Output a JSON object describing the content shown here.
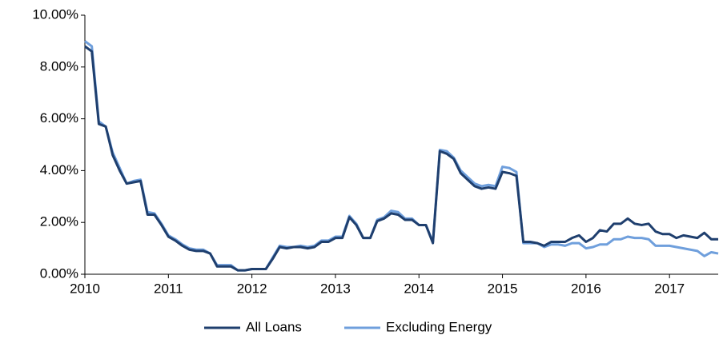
{
  "chart_data": {
    "type": "line",
    "x": [
      2010,
      2010.083,
      2010.167,
      2010.25,
      2010.333,
      2010.417,
      2010.5,
      2010.583,
      2010.667,
      2010.75,
      2010.833,
      2010.917,
      2011,
      2011.083,
      2011.167,
      2011.25,
      2011.333,
      2011.417,
      2011.5,
      2011.583,
      2011.667,
      2011.75,
      2011.833,
      2011.917,
      2012,
      2012.083,
      2012.167,
      2012.25,
      2012.333,
      2012.417,
      2012.5,
      2012.583,
      2012.667,
      2012.75,
      2012.833,
      2012.917,
      2013,
      2013.083,
      2013.167,
      2013.25,
      2013.333,
      2013.417,
      2013.5,
      2013.583,
      2013.667,
      2013.75,
      2013.833,
      2013.917,
      2014,
      2014.083,
      2014.167,
      2014.25,
      2014.333,
      2014.417,
      2014.5,
      2014.583,
      2014.667,
      2014.75,
      2014.833,
      2014.917,
      2015,
      2015.083,
      2015.167,
      2015.25,
      2015.333,
      2015.417,
      2015.5,
      2015.583,
      2015.667,
      2015.75,
      2015.833,
      2015.917,
      2016,
      2016.083,
      2016.167,
      2016.25,
      2016.333,
      2016.417,
      2016.5,
      2016.583,
      2016.667,
      2016.75,
      2016.833,
      2016.917,
      2017,
      2017.083,
      2017.167,
      2017.25,
      2017.333,
      2017.417,
      2017.5,
      2017.583
    ],
    "series": [
      {
        "name": "All Loans",
        "color": "#1f3f6e",
        "values": [
          8.8,
          8.6,
          5.8,
          5.7,
          4.6,
          4.0,
          3.5,
          3.55,
          3.6,
          2.3,
          2.3,
          1.9,
          1.45,
          1.3,
          1.1,
          0.95,
          0.9,
          0.9,
          0.8,
          0.3,
          0.3,
          0.3,
          0.15,
          0.15,
          0.2,
          0.2,
          0.2,
          0.6,
          1.05,
          1.0,
          1.05,
          1.05,
          1.0,
          1.05,
          1.25,
          1.25,
          1.4,
          1.4,
          2.2,
          1.9,
          1.4,
          1.4,
          2.05,
          2.15,
          2.35,
          2.3,
          2.1,
          2.1,
          1.9,
          1.9,
          1.2,
          4.75,
          4.65,
          4.45,
          3.9,
          3.65,
          3.4,
          3.3,
          3.35,
          3.3,
          3.95,
          3.9,
          3.8,
          1.25,
          1.25,
          1.2,
          1.1,
          1.25,
          1.25,
          1.25,
          1.4,
          1.5,
          1.25,
          1.4,
          1.7,
          1.65,
          1.95,
          1.95,
          2.15,
          1.95,
          1.9,
          1.95,
          1.65,
          1.55,
          1.55,
          1.4,
          1.5,
          1.45,
          1.4,
          1.6,
          1.35,
          1.35
        ]
      },
      {
        "name": "Excluding Energy",
        "color": "#6f9fdc",
        "values": [
          9.0,
          8.8,
          5.9,
          5.7,
          4.7,
          4.1,
          3.5,
          3.6,
          3.65,
          2.4,
          2.35,
          1.95,
          1.5,
          1.35,
          1.15,
          1.0,
          0.95,
          0.95,
          0.8,
          0.35,
          0.35,
          0.35,
          0.15,
          0.15,
          0.2,
          0.2,
          0.2,
          0.65,
          1.1,
          1.05,
          1.05,
          1.1,
          1.05,
          1.1,
          1.3,
          1.3,
          1.45,
          1.45,
          2.25,
          1.95,
          1.4,
          1.4,
          2.1,
          2.2,
          2.45,
          2.4,
          2.15,
          2.15,
          1.9,
          1.9,
          1.25,
          4.8,
          4.75,
          4.5,
          4.0,
          3.75,
          3.5,
          3.4,
          3.45,
          3.4,
          4.15,
          4.1,
          3.95,
          1.2,
          1.2,
          1.2,
          1.05,
          1.15,
          1.15,
          1.1,
          1.2,
          1.2,
          1.0,
          1.05,
          1.15,
          1.15,
          1.35,
          1.35,
          1.45,
          1.4,
          1.4,
          1.35,
          1.1,
          1.1,
          1.1,
          1.05,
          1.0,
          0.95,
          0.9,
          0.7,
          0.85,
          0.8
        ]
      }
    ],
    "xlim": [
      2010,
      2017.583
    ],
    "xticks": [
      2010,
      2011,
      2012,
      2013,
      2014,
      2015,
      2016,
      2017
    ],
    "ylim": [
      0,
      10
    ],
    "yticks": [
      {
        "value": 0,
        "label": "0.00%"
      },
      {
        "value": 2,
        "label": "2.00%"
      },
      {
        "value": 4,
        "label": "4.00%"
      },
      {
        "value": 6,
        "label": "6.00%"
      },
      {
        "value": 8,
        "label": "8.00%"
      },
      {
        "value": 10,
        "label": "10.00%"
      }
    ],
    "legend": "bottom"
  }
}
